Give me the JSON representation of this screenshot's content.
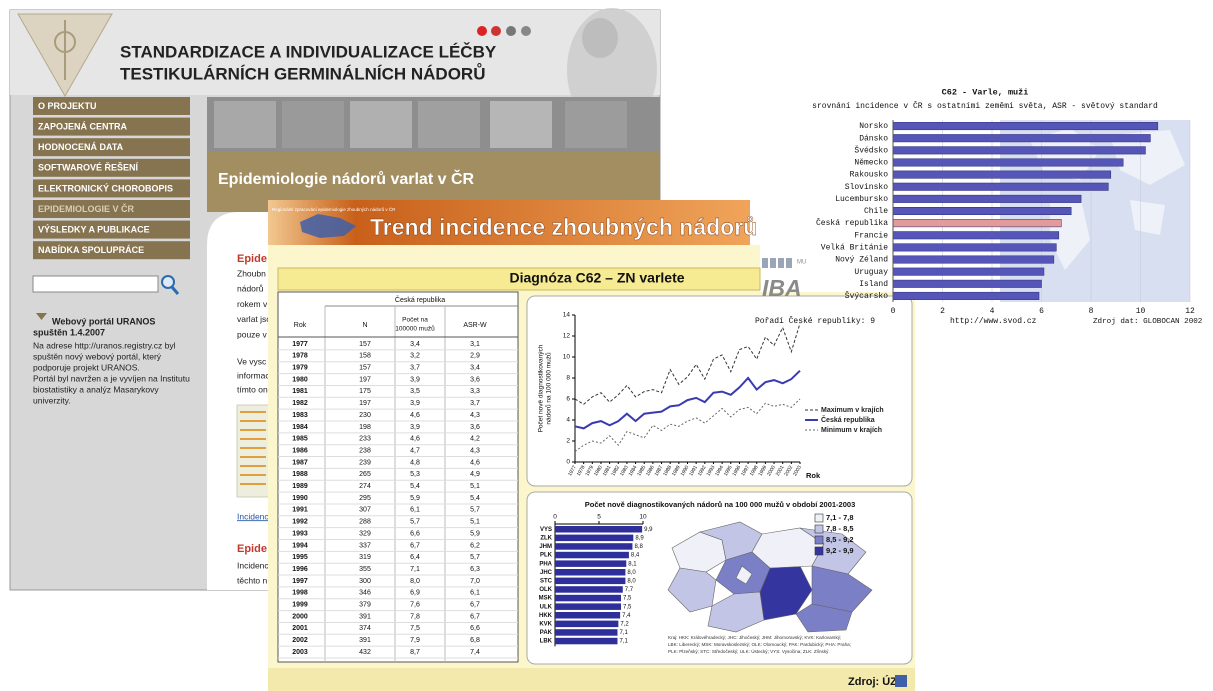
{
  "website": {
    "title_lines": [
      "STANDARDIZACE A INDIVIDUALIZACE LÉČBY",
      "TESTIKULÁRNÍCH GERMINÁLNÍCH NÁDORŮ"
    ],
    "menu": [
      "O PROJEKTU",
      "ZAPOJENÁ CENTRA",
      "HODNOCENÁ DATA",
      "SOFTWAROVÉ ŘEŠENÍ",
      "ELEKTRONICKÝ CHOROBOPIS",
      "EPIDEMIOLOGIE V ČR",
      "VÝSLEDKY A PUBLIKACE",
      "NABÍDKA SPOLUPRÁCE"
    ],
    "banner": "Epidemiologie nádorů varlat v ČR",
    "news": {
      "title_lines": [
        "Webový portál URANOS",
        "spuštěn 1.4.2007"
      ],
      "lines": [
        "Na adrese http://uranos.registry.cz byl",
        "spuštěn nový webový portál, který",
        "podporuje projekt URANOS.",
        "Portál byl navržen a je vyvíjen na Institutu",
        "biostatistiky a analýz Masarykovy",
        "univerzity."
      ]
    },
    "content": {
      "heading1": "Epide",
      "para1": [
        "Zhoubn",
        "nádorů",
        "rokem v",
        "varlat jso",
        "pouze v"
      ],
      "para2": [
        "Ve vysc",
        "informac",
        "tímto on"
      ],
      "link": "Incidenc",
      "heading2": "Epide",
      "para3": [
        "Incidenc",
        "těchto n"
      ]
    }
  },
  "slide": {
    "logo_text": "Regionální zpracování epidemiologie zhoubných nádorů v ČR",
    "title": "Trend incidence zhoubných nádorů",
    "subtitle": "Diagnóza C62 – ZN varlete",
    "table": {
      "group_header": "Česká republika",
      "columns": [
        "Rok",
        "N",
        [
          "Počet na",
          "100000 mužů"
        ],
        "ASR-W"
      ],
      "rows": [
        [
          "1977",
          "157",
          "3,4",
          "3,1"
        ],
        [
          "1978",
          "158",
          "3,2",
          "2,9"
        ],
        [
          "1979",
          "157",
          "3,7",
          "3,4"
        ],
        [
          "1980",
          "197",
          "3,9",
          "3,6"
        ],
        [
          "1981",
          "175",
          "3,5",
          "3,3"
        ],
        [
          "1982",
          "197",
          "3,9",
          "3,7"
        ],
        [
          "1983",
          "230",
          "4,6",
          "4,3"
        ],
        [
          "1984",
          "198",
          "3,9",
          "3,6"
        ],
        [
          "1985",
          "233",
          "4,6",
          "4,2"
        ],
        [
          "1986",
          "238",
          "4,7",
          "4,3"
        ],
        [
          "1987",
          "239",
          "4,8",
          "4,6"
        ],
        [
          "1988",
          "265",
          "5,3",
          "4,9"
        ],
        [
          "1989",
          "274",
          "5,4",
          "5,1"
        ],
        [
          "1990",
          "295",
          "5,9",
          "5,4"
        ],
        [
          "1991",
          "307",
          "6,1",
          "5,7"
        ],
        [
          "1992",
          "288",
          "5,7",
          "5,1"
        ],
        [
          "1993",
          "329",
          "6,6",
          "5,9"
        ],
        [
          "1994",
          "337",
          "6,7",
          "6,2"
        ],
        [
          "1995",
          "319",
          "6,4",
          "5,7"
        ],
        [
          "1996",
          "355",
          "7,1",
          "6,3"
        ],
        [
          "1997",
          "300",
          "8,0",
          "7,0"
        ],
        [
          "1998",
          "346",
          "6,9",
          "6,1"
        ],
        [
          "1999",
          "379",
          "7,6",
          "6,7"
        ],
        [
          "2000",
          "391",
          "7,8",
          "6,7"
        ],
        [
          "2001",
          "374",
          "7,5",
          "6,6"
        ],
        [
          "2002",
          "391",
          "7,9",
          "6,8"
        ],
        [
          "2003",
          "432",
          "8,7",
          "7,4"
        ]
      ]
    },
    "source": "Zdroj: ÚZIS"
  },
  "logo": {
    "iba": "IBA",
    "mu": "MU"
  },
  "chart_data": [
    {
      "type": "bar",
      "orientation": "horizontal",
      "title": "C62 - Varle, muži",
      "subtitle": "srovnání incidence v ČR s ostatními zeměmi světa, ASR - světový standard",
      "categories": [
        "Norsko",
        "Dánsko",
        "Švédsko",
        "Německo",
        "Rakousko",
        "Slovinsko",
        "Lucembursko",
        "Chile",
        "Česká republika",
        "Francie",
        "Velká Británie",
        "Nový Zéland",
        "Uruguay",
        "Island",
        "Švýcarsko"
      ],
      "values": [
        10.7,
        10.4,
        10.2,
        9.3,
        8.8,
        8.7,
        7.6,
        7.2,
        6.8,
        6.7,
        6.6,
        6.5,
        6.1,
        6.0,
        5.9
      ],
      "colors": [
        "#5656b8",
        "#5656b8",
        "#5656b8",
        "#5656b8",
        "#5656b8",
        "#5656b8",
        "#5656b8",
        "#5656b8",
        "#e29a9a",
        "#5656b8",
        "#5656b8",
        "#5656b8",
        "#5656b8",
        "#5656b8",
        "#5656b8"
      ],
      "xlim": [
        0,
        12
      ],
      "xticks": [
        0,
        2,
        4,
        6,
        8,
        10,
        12
      ],
      "grid": true,
      "notes": [
        "Pořadí České republiky: 9",
        "http://www.svod.cz",
        "Zdroj dat: GLOBOCAN 2002"
      ]
    },
    {
      "type": "line",
      "ylabel": [
        "Počet nově diagnostikovaných",
        "nádorů na 100 000 mužů"
      ],
      "xlabel": "Rok",
      "x": [
        1977,
        1978,
        1979,
        1980,
        1981,
        1982,
        1983,
        1984,
        1985,
        1986,
        1987,
        1988,
        1989,
        1990,
        1991,
        1992,
        1993,
        1994,
        1995,
        1996,
        1997,
        1998,
        1999,
        2000,
        2001,
        2002,
        2003
      ],
      "xlim": [
        1977,
        2003
      ],
      "xticks": [
        1977,
        1978,
        1979,
        1980,
        1981,
        1982,
        1983,
        1984,
        1985,
        1986,
        1987,
        1988,
        1989,
        1990,
        1991,
        1992,
        1993,
        1994,
        1995,
        1996,
        1997,
        1998,
        1999,
        2000,
        2001,
        2002,
        2003
      ],
      "ylim": [
        0,
        14
      ],
      "yticks": [
        0,
        2,
        4,
        6,
        8,
        10,
        12,
        14
      ],
      "series": [
        {
          "name": "Maximum v krajích",
          "color": "#333333",
          "dash": "3,2",
          "width": 1,
          "values": [
            6.0,
            5.5,
            6.2,
            6.6,
            5.7,
            6.4,
            7.3,
            6.2,
            6.7,
            6.9,
            6.6,
            8.8,
            7.4,
            8.1,
            9.3,
            7.9,
            9.8,
            10.2,
            8.6,
            10.7,
            11.0,
            9.8,
            11.9,
            11.1,
            12.8,
            10.5,
            13.2
          ]
        },
        {
          "name": "Česká republika",
          "color": "#3b3bb0",
          "dash": "none",
          "width": 2,
          "values": [
            3.4,
            3.2,
            3.7,
            3.9,
            3.5,
            3.9,
            4.6,
            3.9,
            4.6,
            4.7,
            4.8,
            5.3,
            5.4,
            5.9,
            6.1,
            5.7,
            6.6,
            6.7,
            6.4,
            7.1,
            8.0,
            6.9,
            7.6,
            7.8,
            7.5,
            7.9,
            8.7
          ]
        },
        {
          "name": "Minimum v krajích",
          "color": "#666666",
          "dash": "2,2",
          "width": 1,
          "values": [
            1.0,
            1.6,
            2.0,
            1.8,
            2.5,
            1.6,
            2.9,
            2.6,
            2.3,
            3.5,
            3.0,
            3.6,
            3.4,
            3.9,
            4.2,
            3.7,
            4.4,
            5.1,
            4.3,
            5.0,
            5.2,
            4.6,
            5.6,
            5.3,
            5.5,
            5.2,
            6.0
          ]
        }
      ]
    },
    {
      "type": "bar",
      "orientation": "horizontal",
      "title": "Počet nově diagnostikovaných nádorů na 100 000 mužů v období 2001-2003",
      "categories": [
        "VYS",
        "ZLK",
        "JHM",
        "PLK",
        "PHA",
        "JHC",
        "STC",
        "OLK",
        "MSK",
        "ULK",
        "HKK",
        "KVK",
        "PAK",
        "LBK"
      ],
      "values": [
        9.9,
        8.9,
        8.8,
        8.4,
        8.1,
        8.0,
        8.0,
        7.7,
        7.5,
        7.5,
        7.4,
        7.2,
        7.1,
        7.1
      ],
      "value_labels": [
        "9,9",
        "8,9",
        "8,8",
        "8,4",
        "8,1",
        "8,0",
        "8,0",
        "7,7",
        "7,5",
        "7,5",
        "7,4",
        "7,2",
        "7,1",
        "7,1"
      ],
      "color": "#2f2f9c",
      "xlim": [
        0,
        10
      ],
      "xticks": [
        0,
        5,
        10
      ],
      "map_legend": [
        {
          "label": "7,1 - 7,8",
          "color": "#f0f0f8"
        },
        {
          "label": "7,8 - 8,5",
          "color": "#c2c5e5"
        },
        {
          "label": "8,5 - 9,2",
          "color": "#7b7fc6"
        },
        {
          "label": "9,2 - 9,9",
          "color": "#3535a0"
        }
      ],
      "footnote": [
        "Kraj: HKK: Královéhradecký; JHC: Jihočeský; JHM: Jihomoravský; KVK: Karlovarský;",
        "LBK: Liberecký; MSK: Moravskoslezský; OLK: Olomoucký; PAK: Pardubický; PHA: Praha;",
        "PLK: Plzeňský; STC: Středočeský; ULK: Ústecký; VYS: Vysočina; ZLK: Zlínský"
      ]
    }
  ]
}
